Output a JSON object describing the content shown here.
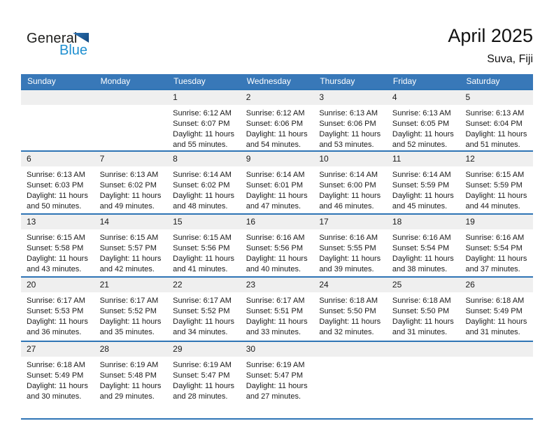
{
  "logo": {
    "general": "General",
    "blue": "Blue"
  },
  "title": "April 2025",
  "location": "Suva, Fiji",
  "weekday_headers": [
    "Sunday",
    "Monday",
    "Tuesday",
    "Wednesday",
    "Thursday",
    "Friday",
    "Saturday"
  ],
  "colors": {
    "header_bg": "#3878b8",
    "separator": "#2e74b5",
    "band": "#efefef",
    "logo_blue": "#1e8fd0"
  },
  "weeks": [
    [
      null,
      null,
      {
        "day": "1",
        "lines": [
          "Sunrise: 6:12 AM",
          "Sunset: 6:07 PM",
          "Daylight: 11 hours",
          "and 55 minutes."
        ]
      },
      {
        "day": "2",
        "lines": [
          "Sunrise: 6:12 AM",
          "Sunset: 6:06 PM",
          "Daylight: 11 hours",
          "and 54 minutes."
        ]
      },
      {
        "day": "3",
        "lines": [
          "Sunrise: 6:13 AM",
          "Sunset: 6:06 PM",
          "Daylight: 11 hours",
          "and 53 minutes."
        ]
      },
      {
        "day": "4",
        "lines": [
          "Sunrise: 6:13 AM",
          "Sunset: 6:05 PM",
          "Daylight: 11 hours",
          "and 52 minutes."
        ]
      },
      {
        "day": "5",
        "lines": [
          "Sunrise: 6:13 AM",
          "Sunset: 6:04 PM",
          "Daylight: 11 hours",
          "and 51 minutes."
        ]
      }
    ],
    [
      {
        "day": "6",
        "lines": [
          "Sunrise: 6:13 AM",
          "Sunset: 6:03 PM",
          "Daylight: 11 hours",
          "and 50 minutes."
        ]
      },
      {
        "day": "7",
        "lines": [
          "Sunrise: 6:13 AM",
          "Sunset: 6:02 PM",
          "Daylight: 11 hours",
          "and 49 minutes."
        ]
      },
      {
        "day": "8",
        "lines": [
          "Sunrise: 6:14 AM",
          "Sunset: 6:02 PM",
          "Daylight: 11 hours",
          "and 48 minutes."
        ]
      },
      {
        "day": "9",
        "lines": [
          "Sunrise: 6:14 AM",
          "Sunset: 6:01 PM",
          "Daylight: 11 hours",
          "and 47 minutes."
        ]
      },
      {
        "day": "10",
        "lines": [
          "Sunrise: 6:14 AM",
          "Sunset: 6:00 PM",
          "Daylight: 11 hours",
          "and 46 minutes."
        ]
      },
      {
        "day": "11",
        "lines": [
          "Sunrise: 6:14 AM",
          "Sunset: 5:59 PM",
          "Daylight: 11 hours",
          "and 45 minutes."
        ]
      },
      {
        "day": "12",
        "lines": [
          "Sunrise: 6:15 AM",
          "Sunset: 5:59 PM",
          "Daylight: 11 hours",
          "and 44 minutes."
        ]
      }
    ],
    [
      {
        "day": "13",
        "lines": [
          "Sunrise: 6:15 AM",
          "Sunset: 5:58 PM",
          "Daylight: 11 hours",
          "and 43 minutes."
        ]
      },
      {
        "day": "14",
        "lines": [
          "Sunrise: 6:15 AM",
          "Sunset: 5:57 PM",
          "Daylight: 11 hours",
          "and 42 minutes."
        ]
      },
      {
        "day": "15",
        "lines": [
          "Sunrise: 6:15 AM",
          "Sunset: 5:56 PM",
          "Daylight: 11 hours",
          "and 41 minutes."
        ]
      },
      {
        "day": "16",
        "lines": [
          "Sunrise: 6:16 AM",
          "Sunset: 5:56 PM",
          "Daylight: 11 hours",
          "and 40 minutes."
        ]
      },
      {
        "day": "17",
        "lines": [
          "Sunrise: 6:16 AM",
          "Sunset: 5:55 PM",
          "Daylight: 11 hours",
          "and 39 minutes."
        ]
      },
      {
        "day": "18",
        "lines": [
          "Sunrise: 6:16 AM",
          "Sunset: 5:54 PM",
          "Daylight: 11 hours",
          "and 38 minutes."
        ]
      },
      {
        "day": "19",
        "lines": [
          "Sunrise: 6:16 AM",
          "Sunset: 5:54 PM",
          "Daylight: 11 hours",
          "and 37 minutes."
        ]
      }
    ],
    [
      {
        "day": "20",
        "lines": [
          "Sunrise: 6:17 AM",
          "Sunset: 5:53 PM",
          "Daylight: 11 hours",
          "and 36 minutes."
        ]
      },
      {
        "day": "21",
        "lines": [
          "Sunrise: 6:17 AM",
          "Sunset: 5:52 PM",
          "Daylight: 11 hours",
          "and 35 minutes."
        ]
      },
      {
        "day": "22",
        "lines": [
          "Sunrise: 6:17 AM",
          "Sunset: 5:52 PM",
          "Daylight: 11 hours",
          "and 34 minutes."
        ]
      },
      {
        "day": "23",
        "lines": [
          "Sunrise: 6:17 AM",
          "Sunset: 5:51 PM",
          "Daylight: 11 hours",
          "and 33 minutes."
        ]
      },
      {
        "day": "24",
        "lines": [
          "Sunrise: 6:18 AM",
          "Sunset: 5:50 PM",
          "Daylight: 11 hours",
          "and 32 minutes."
        ]
      },
      {
        "day": "25",
        "lines": [
          "Sunrise: 6:18 AM",
          "Sunset: 5:50 PM",
          "Daylight: 11 hours",
          "and 31 minutes."
        ]
      },
      {
        "day": "26",
        "lines": [
          "Sunrise: 6:18 AM",
          "Sunset: 5:49 PM",
          "Daylight: 11 hours",
          "and 31 minutes."
        ]
      }
    ],
    [
      {
        "day": "27",
        "lines": [
          "Sunrise: 6:18 AM",
          "Sunset: 5:49 PM",
          "Daylight: 11 hours",
          "and 30 minutes."
        ]
      },
      {
        "day": "28",
        "lines": [
          "Sunrise: 6:19 AM",
          "Sunset: 5:48 PM",
          "Daylight: 11 hours",
          "and 29 minutes."
        ]
      },
      {
        "day": "29",
        "lines": [
          "Sunrise: 6:19 AM",
          "Sunset: 5:47 PM",
          "Daylight: 11 hours",
          "and 28 minutes."
        ]
      },
      {
        "day": "30",
        "lines": [
          "Sunrise: 6:19 AM",
          "Sunset: 5:47 PM",
          "Daylight: 11 hours",
          "and 27 minutes."
        ]
      },
      null,
      null,
      null
    ]
  ]
}
